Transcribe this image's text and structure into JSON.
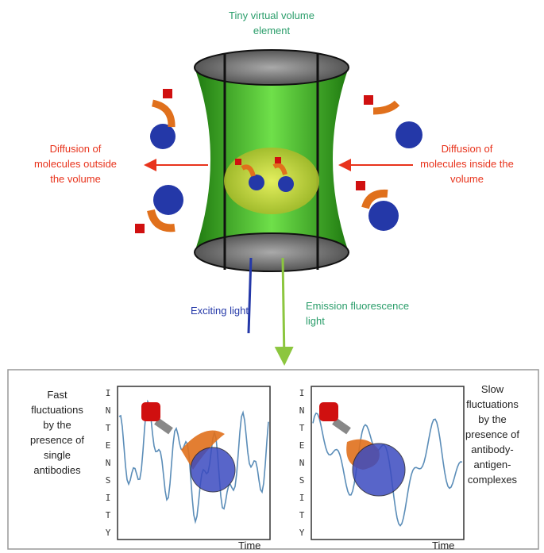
{
  "top_label": [
    "Tiny virtual volume",
    "element"
  ],
  "left_label": [
    "Diffusion of",
    "molecules outside",
    "the volume"
  ],
  "right_label": [
    "Diffusion of",
    "molecules inside the",
    "volume"
  ],
  "exciting_light": "Exciting light",
  "emission_light": [
    "Emission fluorescence",
    "light"
  ],
  "panels": [
    {
      "caption": [
        "Fast",
        "fluctuations",
        "by the",
        "presence of",
        "single",
        "antibodies"
      ],
      "y_axis": "INTENSITY",
      "x_axis": "Time"
    },
    {
      "caption": [
        "Slow",
        "fluctuations",
        "by the",
        "presence of",
        "antibody-",
        "antigen-",
        "complexes"
      ],
      "y_axis": "INTENSITY",
      "x_axis": "Time"
    }
  ]
}
